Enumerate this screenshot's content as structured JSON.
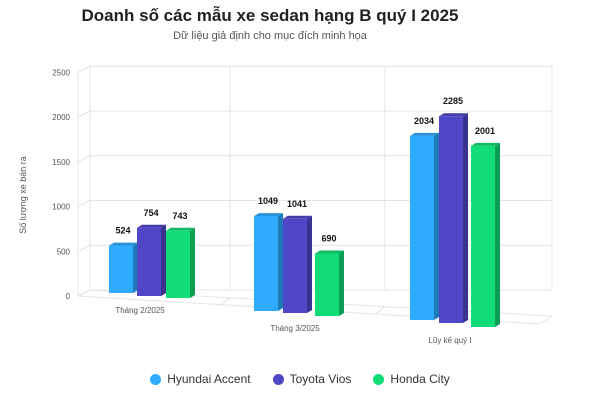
{
  "chart_data": {
    "type": "bar",
    "title": "Doanh số các mẫu xe sedan hạng B quý I 2025",
    "subtitle": "Dữ liệu giả định cho mục đích minh họa",
    "ylabel": "Số lượng xe bán ra",
    "ylim": [
      0,
      2500
    ],
    "yticks": [
      0,
      500,
      1000,
      1500,
      2000,
      2500
    ],
    "grid": true,
    "legend_position": "bottom",
    "categories": [
      "Tháng 2/2025",
      "Tháng 3/2025",
      "Lũy kế quý I"
    ],
    "series": [
      {
        "name": "Hyundai Accent",
        "values": [
          524,
          1049,
          2034
        ],
        "color": "#2eaaff"
      },
      {
        "name": "Toyota Vios",
        "values": [
          754,
          1041,
          2285
        ],
        "color": "#5046c8"
      },
      {
        "name": "Honda City",
        "values": [
          743,
          690,
          2001
        ],
        "color": "#12dc78"
      }
    ]
  }
}
